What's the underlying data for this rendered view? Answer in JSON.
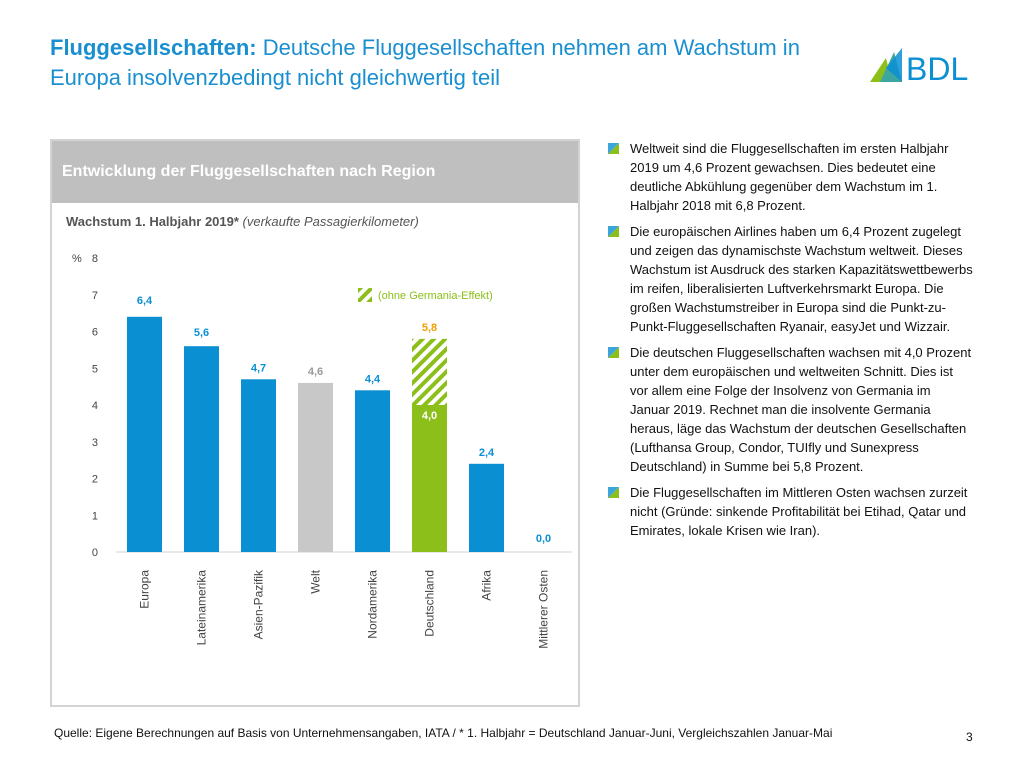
{
  "title": {
    "bold": "Fluggesellschaften:",
    "rest": " Deutsche Fluggesellschaften nehmen am Wachstum in Europa insolvenzbedingt nicht gleichwertig teil"
  },
  "logo": {
    "text": "BDL"
  },
  "panel": {
    "heading": "Entwicklung der Fluggesellschaften nach Region",
    "subtitle_bold": "Wachstum 1. Halbjahr 2019*",
    "subtitle_italic": " (verkaufte Passagierkilometer)"
  },
  "chart_data": {
    "type": "bar",
    "title": "Wachstum 1. Halbjahr 2019* (verkaufte Passagierkilometer)",
    "ylabel": "%",
    "ylim": [
      0,
      8
    ],
    "yticks": [
      "0",
      "1",
      "2",
      "3",
      "4",
      "5",
      "6",
      "7",
      "8"
    ],
    "categories": [
      "Europa",
      "Lateinamerika",
      "Asien-Pazifik",
      "Welt",
      "Nordamerika",
      "Deutschland",
      "Afrika",
      "Mittlerer Osten"
    ],
    "values": [
      6.4,
      5.6,
      4.7,
      4.6,
      4.4,
      4.0,
      2.4,
      0.0
    ],
    "labels": [
      "6,4",
      "5,6",
      "4,7",
      "4,6",
      "4,4",
      "4,0",
      "2,4",
      "0,0"
    ],
    "colors": [
      "#0a8fd3",
      "#0a8fd3",
      "#0a8fd3",
      "#c8c8c8",
      "#0a8fd3",
      "#8cbf1a",
      "#0a8fd3",
      "#0a8fd3"
    ],
    "label_colors": [
      "#0a8fd3",
      "#0a8fd3",
      "#0a8fd3",
      "#9a9a9a",
      "#0a8fd3",
      "#ffffff",
      "#0a8fd3",
      "#0a8fd3"
    ],
    "extra": {
      "category": "Deutschland",
      "value": 5.8,
      "label": "5,8",
      "color": "#8cbf1a"
    },
    "legend": "(ohne Germania-Effekt)",
    "legend_position": "top-right"
  },
  "bullets": [
    "Weltweit sind die Fluggesellschaften im ersten Halbjahr 2019 um 4,6 Prozent gewachsen. Dies bedeutet eine deutliche Abkühlung gegenüber dem Wachstum im 1. Halbjahr 2018 mit 6,8 Prozent.",
    "Die europäischen Airlines haben um 6,4 Prozent zugelegt und zeigen das dynamischste Wachstum weltweit. Dieses Wachstum ist Ausdruck des starken Kapazitätswettbewerbs im reifen, liberalisierten Luftverkehrsmarkt Europa. Die großen Wachstumstreiber in Europa sind die Punkt-zu-Punkt-Fluggesellschaften Ryanair, easyJet und Wizzair.",
    "Die deutschen Fluggesellschaften wachsen mit 4,0 Prozent unter dem europäischen und weltweiten Schnitt. Dies ist vor allem eine Folge der Insolvenz von Germania im Januar 2019. Rechnet man die insolvente Germania heraus, läge das Wachstum der deutschen Gesellschaften (Lufthansa Group, Condor, TUIfly und Sunexpress Deutschland) in Summe bei 5,8 Prozent.",
    "Die Fluggesellschaften im Mittleren Osten wachsen zurzeit nicht (Gründe: sinkende Profitabilität bei Etihad, Qatar und Emirates, lokale Krisen wie Iran)."
  ],
  "footer": "Quelle: Eigene Berechnungen auf Basis von Unternehmensangaben, IATA   /   * 1. Halbjahr = Deutschland Januar-Juni, Vergleichszahlen Januar-Mai",
  "page_number": "3"
}
